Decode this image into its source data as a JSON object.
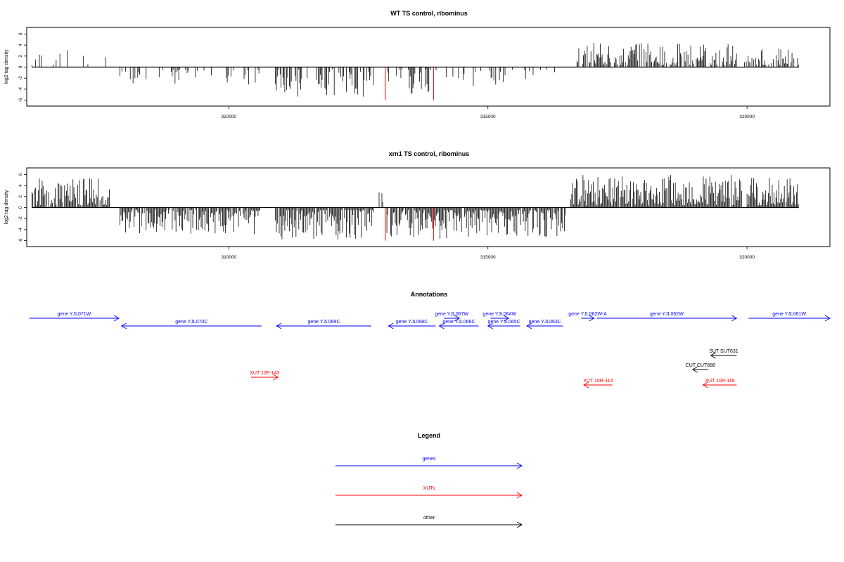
{
  "chart_data": [
    {
      "type": "bar",
      "title": "WT TS control, ribominus",
      "ylabel": "log2 tag density",
      "xlabel": "",
      "xlim": [
        306100,
        321600
      ],
      "ylim": [
        -6.5,
        6.5
      ],
      "yticks": [
        -6,
        -4,
        -2,
        0,
        2,
        4,
        6
      ],
      "xticks": [
        310000,
        315000,
        320000
      ],
      "grid": false,
      "profile": "wt",
      "highlight_color": "#ff0000",
      "bar_color": "#000000",
      "highlighted_bars": [
        {
          "x": 313020,
          "y": -6.0
        },
        {
          "x": 313950,
          "y": -6.0
        }
      ]
    },
    {
      "type": "bar",
      "title": "xrn1 TS control, ribominus",
      "ylabel": "log2 tag density",
      "xlabel": "",
      "xlim": [
        306100,
        321600
      ],
      "ylim": [
        -6.5,
        6.5
      ],
      "yticks": [
        -6,
        -4,
        -2,
        0,
        2,
        4,
        6
      ],
      "xticks": [
        310000,
        315000,
        320000
      ],
      "grid": false,
      "profile": "xrn1",
      "highlight_color": "#ff0000",
      "bar_color": "#000000",
      "highlighted_bars": [
        {
          "x": 313020,
          "y": -6.0
        },
        {
          "x": 313950,
          "y": -6.0
        }
      ]
    }
  ],
  "annotations": {
    "title": "Annotations",
    "features": [
      {
        "label": "gene YJL071W",
        "start": 306150,
        "end": 307880,
        "strand": "+",
        "kind": "gene",
        "row": 0
      },
      {
        "label": "gene YJL070C",
        "start": 307930,
        "end": 310630,
        "strand": "-",
        "kind": "gene",
        "row": 1
      },
      {
        "label": "gene YJL069C",
        "start": 310920,
        "end": 312750,
        "strand": "-",
        "kind": "gene",
        "row": 1
      },
      {
        "label": "gene YJL068C",
        "start": 313080,
        "end": 313990,
        "strand": "-",
        "kind": "gene",
        "row": 1
      },
      {
        "label": "gene YJL067W",
        "start": 314150,
        "end": 314450,
        "strand": "+",
        "kind": "gene",
        "row": 0
      },
      {
        "label": "gene YJL066C",
        "start": 314060,
        "end": 314820,
        "strand": "-",
        "kind": "gene",
        "row": 1
      },
      {
        "label": "gene YJL064W",
        "start": 315050,
        "end": 315400,
        "strand": "+",
        "kind": "gene",
        "row": 0
      },
      {
        "label": "gene YJL065C",
        "start": 315000,
        "end": 315620,
        "strand": "-",
        "kind": "gene",
        "row": 1
      },
      {
        "label": "gene YJL063C",
        "start": 315750,
        "end": 316450,
        "strand": "-",
        "kind": "gene",
        "row": 1
      },
      {
        "label": "gene YJL062W-A",
        "start": 316800,
        "end": 317050,
        "strand": "+",
        "kind": "gene",
        "row": 0
      },
      {
        "label": "gene YJL062W",
        "start": 317100,
        "end": 319800,
        "strand": "+",
        "kind": "gene",
        "row": 0
      },
      {
        "label": "gene YJL061W",
        "start": 320030,
        "end": 321600,
        "strand": "+",
        "kind": "gene",
        "row": 0
      },
      {
        "label": "SUT SUT631",
        "start": 319300,
        "end": 319800,
        "strand": "-",
        "kind": "other",
        "row": 5
      },
      {
        "label": "CUT CUT688",
        "start": 318950,
        "end": 319250,
        "strand": "-",
        "kind": "other",
        "row": 7
      },
      {
        "label": "XUT 10F-143",
        "start": 310430,
        "end": 310950,
        "strand": "+",
        "kind": "xut",
        "row": 8
      },
      {
        "label": "XUT 10R-114",
        "start": 316850,
        "end": 317400,
        "strand": "-",
        "kind": "xut",
        "row": 9
      },
      {
        "label": "XUT 10R-116",
        "start": 319150,
        "end": 319800,
        "strand": "-",
        "kind": "xut",
        "row": 9
      }
    ]
  },
  "legend": {
    "title": "Legend",
    "items": [
      {
        "label": "genes",
        "color": "#0000ff"
      },
      {
        "label": "XUTs",
        "color": "#ff0000"
      },
      {
        "label": "other",
        "color": "#000000"
      }
    ]
  },
  "colors": {
    "gene": "#0000ff",
    "xut": "#ff0000",
    "other": "#000000",
    "axis": "#000000"
  }
}
